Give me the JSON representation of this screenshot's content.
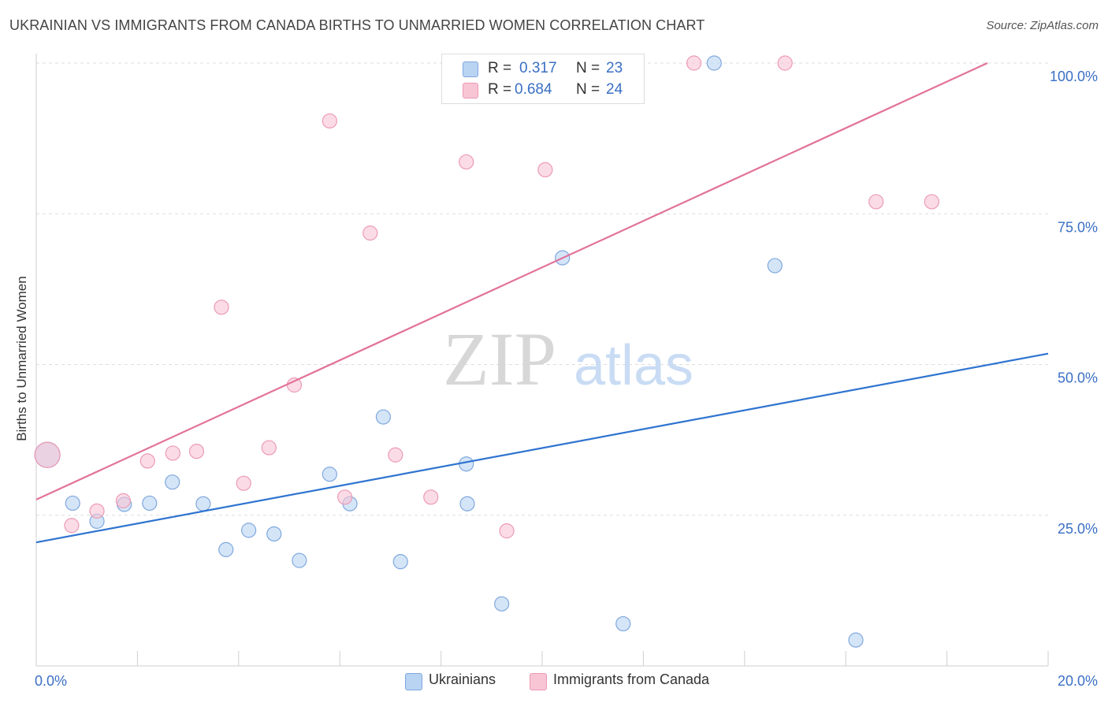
{
  "title": "UKRAINIAN VS IMMIGRANTS FROM CANADA BIRTHS TO UNMARRIED WOMEN CORRELATION CHART",
  "source": "Source: ZipAtlas.com",
  "watermark": {
    "zip": "ZIP",
    "atlas": "atlas"
  },
  "legend_top": [
    {
      "r_label": "R =",
      "r_value": "0.317",
      "n_label": "N =",
      "n_value": "23"
    },
    {
      "r_label": "R =",
      "r_value": "0.684",
      "n_label": "N =",
      "n_value": "24"
    }
  ],
  "colors": {
    "blue_fill": "#b9d3f3",
    "blue_stroke": "#7fa8dd",
    "blue_line": "#2f74d0",
    "pink_fill": "#f8c5d5",
    "pink_stroke": "#ec9ab4",
    "pink_line": "#e2729a",
    "tick_text": "#3a6fc4",
    "grid": "#dddddd"
  },
  "chart_data": {
    "type": "scatter",
    "title": "UKRAINIAN VS IMMIGRANTS FROM CANADA BIRTHS TO UNMARRIED WOMEN CORRELATION CHART",
    "xlabel": "",
    "ylabel": "Births to Unmarried Women",
    "xlim": [
      0,
      20
    ],
    "ylim": [
      0,
      100
    ],
    "x_tick_labels": [
      {
        "value": 0,
        "label": "0.0%"
      },
      {
        "value": 20,
        "label": "20.0%"
      }
    ],
    "y_tick_labels": [
      {
        "value": 25,
        "label": "25.0%"
      },
      {
        "value": 50,
        "label": "50.0%"
      },
      {
        "value": 75,
        "label": "75.0%"
      },
      {
        "value": 100,
        "label": "100.0%"
      }
    ],
    "grid": true,
    "legend_position": "bottom",
    "series": [
      {
        "name": "Ukrainians",
        "color": "#b9d3f3",
        "points": [
          [
            0.22,
            35.0
          ],
          [
            0.72,
            27.0
          ],
          [
            1.2,
            24.0
          ],
          [
            1.74,
            26.8
          ],
          [
            2.24,
            27.0
          ],
          [
            2.69,
            30.5
          ],
          [
            3.3,
            26.9
          ],
          [
            3.75,
            19.3
          ],
          [
            4.2,
            22.5
          ],
          [
            4.7,
            21.9
          ],
          [
            5.2,
            17.5
          ],
          [
            5.8,
            31.8
          ],
          [
            6.2,
            26.9
          ],
          [
            6.86,
            41.3
          ],
          [
            7.2,
            17.3
          ],
          [
            8.5,
            33.5
          ],
          [
            8.52,
            26.9
          ],
          [
            9.2,
            10.3
          ],
          [
            10.4,
            67.7
          ],
          [
            11.6,
            7.0
          ],
          [
            13.4,
            100.0
          ],
          [
            14.6,
            66.4
          ],
          [
            16.2,
            4.3
          ]
        ],
        "trend": {
          "x": [
            0,
            20
          ],
          "y": [
            20.5,
            51.8
          ]
        }
      },
      {
        "name": "Immigrants from Canada",
        "color": "#f8c5d5",
        "points": [
          [
            0.22,
            35.0
          ],
          [
            0.7,
            23.3
          ],
          [
            1.2,
            25.7
          ],
          [
            1.72,
            27.4
          ],
          [
            2.2,
            34.0
          ],
          [
            2.7,
            35.3
          ],
          [
            3.17,
            35.6
          ],
          [
            3.66,
            59.5
          ],
          [
            4.1,
            30.3
          ],
          [
            4.6,
            36.2
          ],
          [
            5.1,
            46.6
          ],
          [
            5.8,
            90.4
          ],
          [
            6.1,
            28.0
          ],
          [
            6.6,
            71.8
          ],
          [
            7.1,
            35.0
          ],
          [
            7.8,
            28.0
          ],
          [
            8.5,
            83.6
          ],
          [
            9.3,
            22.4
          ],
          [
            9.9,
            100.0
          ],
          [
            10.06,
            82.3
          ],
          [
            13.0,
            100.0
          ],
          [
            14.8,
            100.0
          ],
          [
            16.6,
            77.0
          ],
          [
            17.7,
            77.0
          ]
        ],
        "trend": {
          "x": [
            0,
            18.8
          ],
          "y": [
            27.6,
            100.0
          ]
        }
      }
    ]
  }
}
